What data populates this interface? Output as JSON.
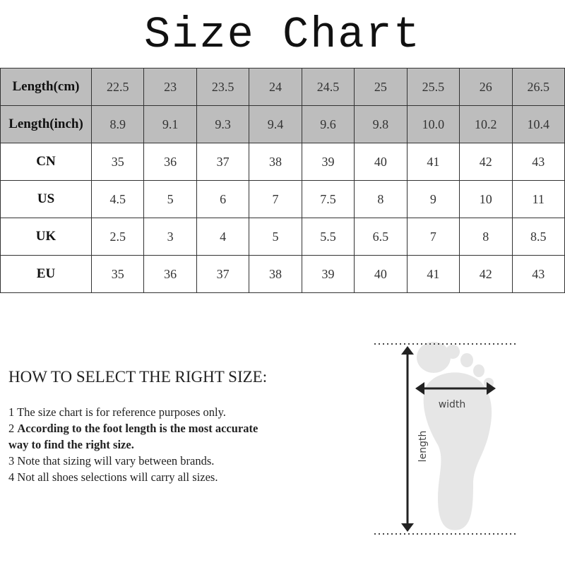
{
  "title": "Size Chart",
  "table": {
    "rows": [
      {
        "label": "Length(cm)",
        "values": [
          "22.5",
          "23",
          "23.5",
          "24",
          "24.5",
          "25",
          "25.5",
          "26",
          "26.5"
        ],
        "shaded": true
      },
      {
        "label": "Length(inch)",
        "values": [
          "8.9",
          "9.1",
          "9.3",
          "9.4",
          "9.6",
          "9.8",
          "10.0",
          "10.2",
          "10.4"
        ],
        "shaded": true
      },
      {
        "label": "CN",
        "values": [
          "35",
          "36",
          "37",
          "38",
          "39",
          "40",
          "41",
          "42",
          "43"
        ],
        "shaded": false
      },
      {
        "label": "US",
        "values": [
          "4.5",
          "5",
          "6",
          "7",
          "7.5",
          "8",
          "9",
          "10",
          "11"
        ],
        "shaded": false
      },
      {
        "label": "UK",
        "values": [
          "2.5",
          "3",
          "4",
          "5",
          "5.5",
          "6.5",
          "7",
          "8",
          "8.5"
        ],
        "shaded": false
      },
      {
        "label": "EU",
        "values": [
          "35",
          "36",
          "37",
          "38",
          "39",
          "40",
          "41",
          "42",
          "43"
        ],
        "shaded": false
      }
    ]
  },
  "guide": {
    "heading": "HOW TO SELECT THE RIGHT SIZE:",
    "notes": [
      {
        "num": "1",
        "text": "The size chart is for reference purposes only.",
        "bold": false
      },
      {
        "num": "2",
        "text": "According to the foot length is the most accurate way to find the right size.",
        "bold": true
      },
      {
        "num": "3",
        "text": "Note that sizing will vary between brands.",
        "bold": false
      },
      {
        "num": "4",
        "text": "Not all shoes selections will carry all sizes.",
        "bold": false
      }
    ]
  },
  "diagram": {
    "width_label": "width",
    "length_label": "length",
    "foot_color": "#e6e6e6",
    "arrow_color": "#222222"
  }
}
